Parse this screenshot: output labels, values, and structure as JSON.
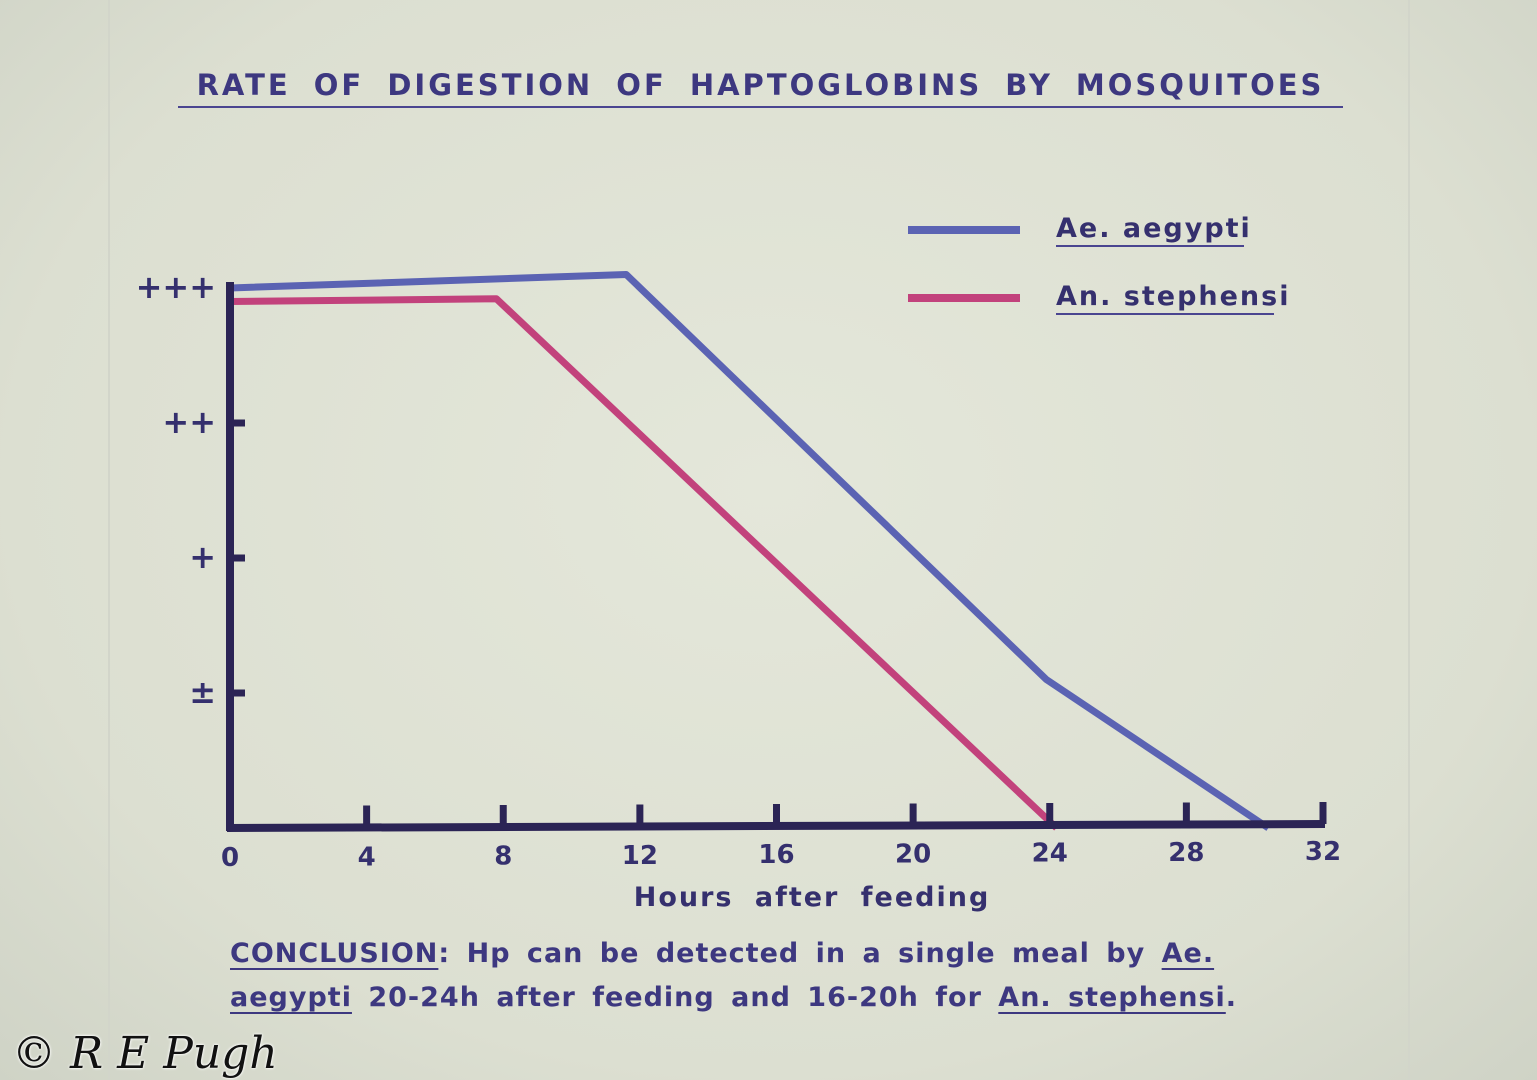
{
  "chart_data": {
    "type": "line",
    "title": "RATE OF DIGESTION OF HAPTOGLOBINS BY MOSQUITOES",
    "xlabel": "Hours after feeding",
    "ylabel": "",
    "xlim": [
      0,
      32
    ],
    "ylim": [
      0,
      4
    ],
    "x_ticks": [
      0,
      4,
      8,
      12,
      16,
      20,
      24,
      28,
      32
    ],
    "y_ticks": [
      {
        "value": 1,
        "label": "±"
      },
      {
        "value": 2,
        "label": "+"
      },
      {
        "value": 3,
        "label": "++"
      },
      {
        "value": 4,
        "label": "+++"
      }
    ],
    "grid": false,
    "legend_position": "top-right",
    "series": [
      {
        "name": "Ae. aegypti",
        "color": "#5b63b3",
        "points": [
          [
            0,
            4.0
          ],
          [
            11.6,
            4.1
          ],
          [
            23.9,
            1.1
          ],
          [
            30.4,
            0
          ]
        ]
      },
      {
        "name": "An. stephensi",
        "color": "#c2427c",
        "points": [
          [
            0,
            3.9
          ],
          [
            7.8,
            3.92
          ],
          [
            24.2,
            0
          ]
        ]
      }
    ]
  },
  "conclusion": {
    "label": "CONCLUSION",
    "colon": ":",
    "text1": "Hp can be detected in a single meal by",
    "species1a": "Ae.",
    "species1b": "aegypti",
    "text2": "20-24h after feeding and 16-20h for",
    "species2": "An. stephensi",
    "period": "."
  },
  "watermark": "© R E Pugh"
}
